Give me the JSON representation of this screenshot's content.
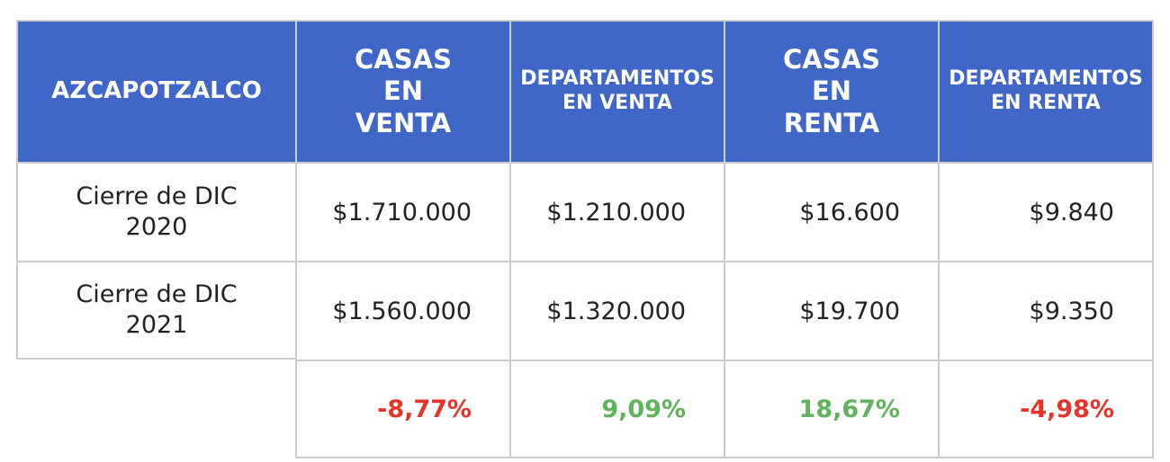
{
  "table": {
    "headers": [
      "AZCAPOTZALCO",
      "CASAS EN VENTA",
      "DEPARTAMENTOS EN VENTA",
      "CASAS EN RENTA",
      "DEPARTAMENTOS EN RENTA"
    ],
    "rows": [
      {
        "label": "Cierre de DIC 2020",
        "values": [
          "$1.710.000",
          "$1.210.000",
          "$16.600",
          "$9.840"
        ]
      },
      {
        "label": "Cierre de DIC 2021",
        "values": [
          "$1.560.000",
          "$1.320.000",
          "$19.700",
          "$9.350"
        ]
      }
    ],
    "changes": [
      "-8,77%",
      "9,09%",
      "18,67%",
      "-4,98%"
    ]
  },
  "colors": {
    "header_bg": "#4066c8",
    "negative": "#e8332a",
    "positive": "#5fb35a",
    "border": "#cccccc"
  }
}
